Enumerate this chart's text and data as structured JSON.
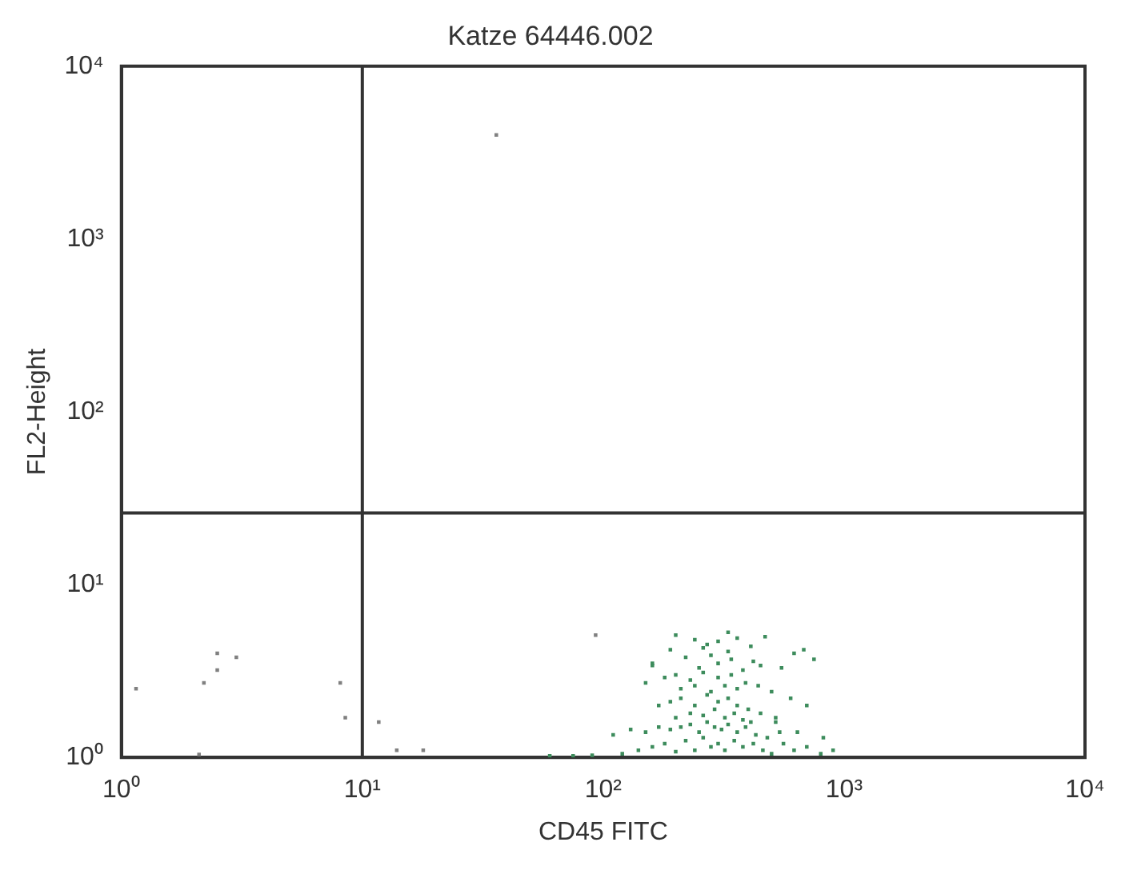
{
  "chart_data": {
    "type": "scatter",
    "title": "Katze 64446.002",
    "xlabel": "CD45 FITC",
    "ylabel": "FL2-Height",
    "log": "xy",
    "xlim": [
      1,
      10000
    ],
    "ylim": [
      1,
      10000
    ],
    "xticks": [
      {
        "value": 1,
        "label": "10⁰"
      },
      {
        "value": 10,
        "label": "10¹"
      },
      {
        "value": 100,
        "label": "10²"
      },
      {
        "value": 1000,
        "label": "10³"
      },
      {
        "value": 10000,
        "label": "10⁴"
      }
    ],
    "yticks": [
      {
        "value": 1,
        "label": "10⁰"
      },
      {
        "value": 10,
        "label": "10¹"
      },
      {
        "value": 100,
        "label": "10²"
      },
      {
        "value": 1000,
        "label": "10³"
      },
      {
        "value": 10000,
        "label": "10⁴"
      }
    ],
    "grid": false,
    "legend": false,
    "marker": "square",
    "ref_lines": [
      {
        "axis": "x",
        "value": 10,
        "label": null
      },
      {
        "axis": "y",
        "value": 26,
        "label": null
      }
    ],
    "series": [
      {
        "color": "#808080",
        "x": [
          1.15,
          2.2,
          2.5,
          2.5,
          3,
          2.1,
          8.1,
          8.5,
          11.7,
          13.9,
          17.9,
          36,
          93
        ],
        "values": [
          2.5,
          2.7,
          4,
          3.2,
          3.8,
          1.04,
          2.7,
          1.7,
          1.6,
          1.1,
          1.1,
          4000,
          5.1
        ]
      },
      {
        "color": "#3d8c5c",
        "x": [
          120,
          140,
          160,
          180,
          200,
          220,
          240,
          260,
          280,
          300,
          320,
          350,
          380,
          420,
          460,
          500,
          560,
          620,
          700,
          800,
          900,
          60,
          75,
          90,
          110,
          130,
          150,
          170,
          190,
          210,
          230,
          250,
          270,
          290,
          310,
          330,
          360,
          390,
          430,
          480,
          540,
          200,
          230,
          260,
          290,
          320,
          350,
          380,
          410,
          170,
          190,
          210,
          240,
          270,
          300,
          330,
          360,
          400,
          450,
          520,
          210,
          240,
          280,
          320,
          360,
          150,
          180,
          200,
          230,
          260,
          300,
          340,
          390,
          440,
          500,
          600,
          700,
          160,
          250,
          300,
          380,
          450,
          550,
          220,
          280,
          340,
          420,
          190,
          260,
          330,
          410,
          620,
          750,
          240,
          300,
          360,
          270,
          200,
          330,
          470,
          680,
          160,
          520,
          640,
          820
        ],
        "values": [
          1.05,
          1.1,
          1.15,
          1.2,
          1.08,
          1.25,
          1.1,
          1.3,
          1.15,
          1.2,
          1.1,
          1.25,
          1.15,
          1.2,
          1.1,
          1.05,
          1.2,
          1.1,
          1.15,
          1.05,
          1.1,
          1.02,
          1.02,
          1.03,
          1.35,
          1.45,
          1.4,
          1.5,
          1.45,
          1.5,
          1.55,
          1.4,
          1.6,
          1.5,
          1.45,
          1.55,
          1.4,
          1.5,
          1.35,
          1.3,
          1.4,
          1.7,
          1.8,
          1.75,
          1.9,
          1.7,
          1.8,
          1.65,
          1.6,
          2,
          2.1,
          2.2,
          2.0,
          2.3,
          2.1,
          2.2,
          2.0,
          1.9,
          1.8,
          1.7,
          2.5,
          2.6,
          2.4,
          2.6,
          2.5,
          2.7,
          2.9,
          3.0,
          2.8,
          3.1,
          2.9,
          3.0,
          2.7,
          2.6,
          2.4,
          2.2,
          2.0,
          3.4,
          3.3,
          3.5,
          3.2,
          3.4,
          3.3,
          3.8,
          3.9,
          3.7,
          3.6,
          4.2,
          4.3,
          4.1,
          4.4,
          4.0,
          3.7,
          4.8,
          4.7,
          4.9,
          4.5,
          5.1,
          5.3,
          5.0,
          4.2,
          3.5,
          1.6,
          1.4,
          1.3
        ]
      }
    ]
  }
}
